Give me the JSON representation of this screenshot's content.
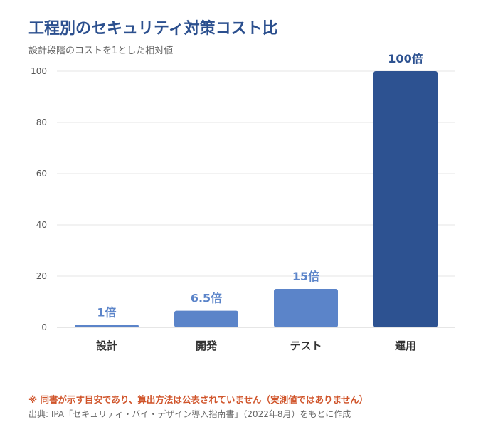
{
  "header": {
    "title": "工程別のセキュリティ対策コスト比",
    "subtitle": "設計段階のコストを1とした相対値"
  },
  "footer": {
    "note": "※ 同書が示す目安であり、算出方法は公表されていません（実測値ではありません）",
    "source": "出典: IPA「セキュリティ・バイ・デザイン導入指南書」（2022年8月）をもとに作成"
  },
  "colors": {
    "title": "#2b4f8e",
    "bar_light": "#5b84c9",
    "bar_dark": "#2d5291",
    "label_light": "#5b84c9",
    "label_dark": "#2d5291",
    "note": "#d0542a",
    "grid": "#e6e6e6",
    "axis": "#cccccc"
  },
  "chart_data": {
    "type": "bar",
    "categories": [
      "設計",
      "開発",
      "テスト",
      "運用"
    ],
    "values": [
      1,
      6.5,
      15,
      100
    ],
    "data_labels": [
      "1倍",
      "6.5倍",
      "15倍",
      "100倍"
    ],
    "ylim": [
      0,
      100
    ],
    "yticks": [
      0,
      20,
      40,
      60,
      80,
      100
    ],
    "highlight_index": 3,
    "grid": true,
    "legend": "none",
    "xlabel": "",
    "ylabel": ""
  }
}
